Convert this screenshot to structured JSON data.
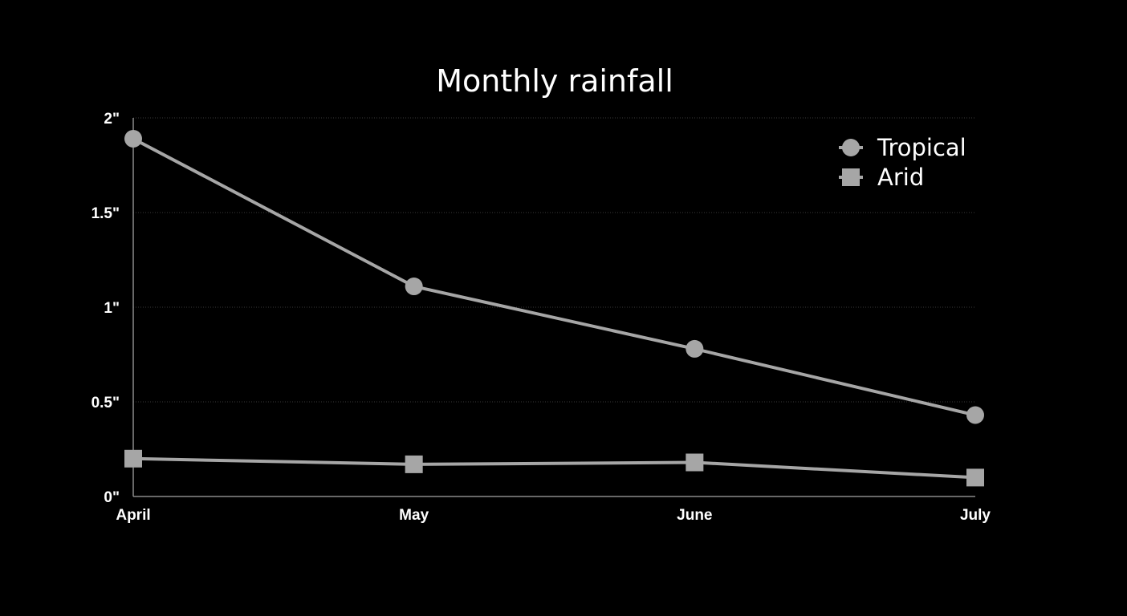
{
  "colors": {
    "background": "#000000",
    "text": "#ffffff",
    "series": "#a6a6a6",
    "grid": "#3a3a3a",
    "axis": "#8a8a8a"
  },
  "chart_data": {
    "type": "line",
    "title": "Monthly rainfall",
    "xlabel": "",
    "ylabel": "",
    "categories": [
      "April",
      "May",
      "June",
      "July"
    ],
    "ylim": [
      0,
      2
    ],
    "y_ticks": [
      {
        "value": 0,
        "label": "0\""
      },
      {
        "value": 0.5,
        "label": "0.5\""
      },
      {
        "value": 1,
        "label": "1\""
      },
      {
        "value": 1.5,
        "label": "1.5\""
      },
      {
        "value": 2,
        "label": "2\""
      }
    ],
    "grid": true,
    "legend_position": "top-right",
    "series": [
      {
        "name": "Tropical",
        "marker": "circle",
        "values": [
          1.89,
          1.11,
          0.78,
          0.43
        ]
      },
      {
        "name": "Arid",
        "marker": "square",
        "values": [
          0.2,
          0.17,
          0.18,
          0.1
        ]
      }
    ]
  }
}
